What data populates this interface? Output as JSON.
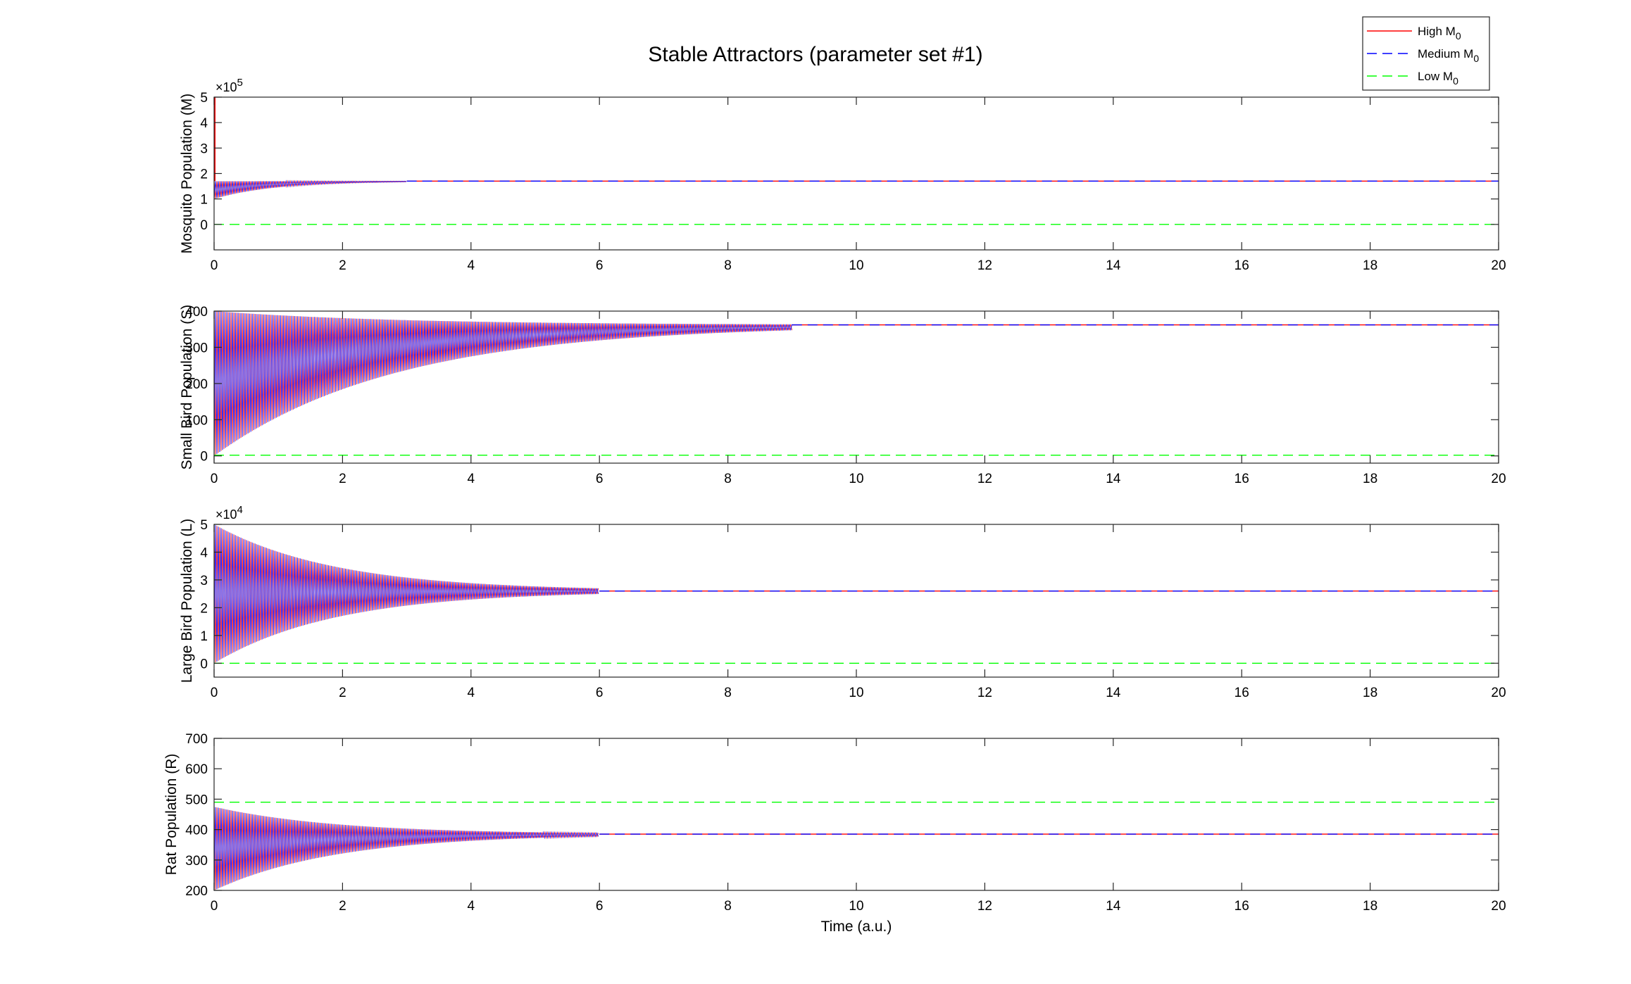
{
  "figure_title": "Stable Attractors (parameter set #1)",
  "legend": [
    {
      "label": "High M",
      "sub": "0",
      "color": "#ff0000",
      "style": "solid"
    },
    {
      "label": "Medium M",
      "sub": "0",
      "color": "#0000ff",
      "style": "dashed"
    },
    {
      "label": "Low M",
      "sub": "0",
      "color": "#00ff00",
      "style": "dashed"
    }
  ],
  "chart_data": [
    {
      "type": "line",
      "title": "",
      "xlabel": "",
      "ylabel": "Mosquito Population (M)",
      "exponent": "5",
      "xlim": [
        0,
        20
      ],
      "ylim": [
        -100000,
        500000
      ],
      "xticks": [
        0,
        2,
        4,
        6,
        8,
        10,
        12,
        14,
        16,
        18,
        20
      ],
      "yticks": [
        0,
        100000,
        200000,
        300000,
        400000,
        500000
      ],
      "ytick_labels": [
        "0",
        "1",
        "2",
        "3",
        "4",
        "5"
      ],
      "series": [
        {
          "name": "High M0",
          "color": "#ff0000",
          "steady": 170000,
          "initial": 500000,
          "osc_lo": 100000,
          "osc_hi": 170000,
          "decay_end": 3
        },
        {
          "name": "Medium M0",
          "color": "#0000ff",
          "steady": 170000,
          "initial": 170000,
          "osc_lo": 100000,
          "osc_hi": 170000,
          "decay_end": 3
        },
        {
          "name": "Low M0",
          "color": "#00ff00",
          "steady": 0,
          "initial": 0
        }
      ]
    },
    {
      "type": "line",
      "title": "",
      "xlabel": "",
      "ylabel": "Small Bird Population (S)",
      "xlim": [
        0,
        20
      ],
      "ylim": [
        -20,
        400
      ],
      "xticks": [
        0,
        2,
        4,
        6,
        8,
        10,
        12,
        14,
        16,
        18,
        20
      ],
      "yticks": [
        0,
        100,
        200,
        300,
        400
      ],
      "ytick_labels": [
        "0",
        "100",
        "200",
        "300",
        "400"
      ],
      "series": [
        {
          "name": "High M0",
          "color": "#ff0000",
          "steady": 362,
          "osc_lo": 0,
          "osc_hi": 400,
          "decay_end": 9
        },
        {
          "name": "Medium M0",
          "color": "#0000ff",
          "steady": 362,
          "osc_lo": 0,
          "osc_hi": 400,
          "decay_end": 9
        },
        {
          "name": "Low M0",
          "color": "#00ff00",
          "steady": 2
        }
      ]
    },
    {
      "type": "line",
      "title": "",
      "xlabel": "",
      "ylabel": "Large Bird Population (L)",
      "exponent": "4",
      "xlim": [
        0,
        20
      ],
      "ylim": [
        -5000,
        50000
      ],
      "xticks": [
        0,
        2,
        4,
        6,
        8,
        10,
        12,
        14,
        16,
        18,
        20
      ],
      "yticks": [
        0,
        10000,
        20000,
        30000,
        40000,
        50000
      ],
      "ytick_labels": [
        "0",
        "1",
        "2",
        "3",
        "4",
        "5"
      ],
      "series": [
        {
          "name": "High M0",
          "color": "#ff0000",
          "steady": 26000,
          "osc_lo": 0,
          "osc_hi": 50000,
          "decay_end": 6
        },
        {
          "name": "Medium M0",
          "color": "#0000ff",
          "steady": 26000,
          "osc_lo": 0,
          "osc_hi": 50000,
          "decay_end": 6
        },
        {
          "name": "Low M0",
          "color": "#00ff00",
          "steady": 0
        }
      ]
    },
    {
      "type": "line",
      "title": "",
      "xlabel": "Time (a.u.)",
      "ylabel": "Rat Population (R)",
      "xlim": [
        0,
        20
      ],
      "ylim": [
        200,
        700
      ],
      "xticks": [
        0,
        2,
        4,
        6,
        8,
        10,
        12,
        14,
        16,
        18,
        20
      ],
      "yticks": [
        200,
        300,
        400,
        500,
        600,
        700
      ],
      "ytick_labels": [
        "200",
        "300",
        "400",
        "500",
        "600",
        "700"
      ],
      "series": [
        {
          "name": "High M0",
          "color": "#ff0000",
          "steady": 385,
          "osc_lo": 200,
          "osc_hi": 475,
          "decay_end": 6
        },
        {
          "name": "Medium M0",
          "color": "#0000ff",
          "steady": 385,
          "osc_lo": 200,
          "osc_hi": 475,
          "decay_end": 6
        },
        {
          "name": "Low M0",
          "color": "#00ff00",
          "steady": 490
        }
      ]
    }
  ]
}
